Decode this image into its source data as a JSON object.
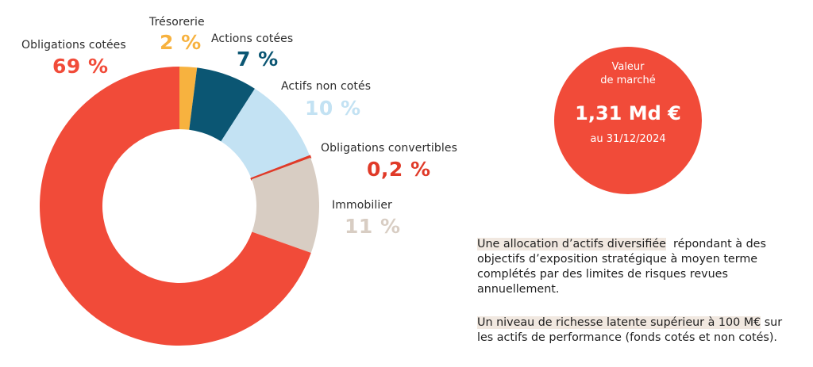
{
  "colors": {
    "obligations_cotees": "#f14b39",
    "tresorerie": "#f7b23f",
    "actions_cotees": "#0b5673",
    "actifs_non_cotes": "#c3e2f3",
    "obligations_convertibles": "#e03a28",
    "immobilier": "#d8cdc3",
    "badge": "#f14b39",
    "highlight": "#f1e8e0"
  },
  "chart_data": {
    "type": "pie",
    "donut": true,
    "start_at": "top",
    "direction": "clockwise",
    "slices": [
      {
        "name": "Trésorerie",
        "value": 2,
        "label": "2 %",
        "color": "#f7b23f"
      },
      {
        "name": "Actions cotées",
        "value": 7,
        "label": "7 %",
        "color": "#0b5673"
      },
      {
        "name": "Actifs non cotés",
        "value": 10,
        "label": "10 %",
        "color": "#c3e2f3"
      },
      {
        "name": "Obligations convertibles",
        "value": 0.2,
        "label": "0,2 %",
        "color": "#e03a28"
      },
      {
        "name": "Immobilier",
        "value": 11,
        "label": "11 %",
        "color": "#d8cdc3"
      },
      {
        "name": "Obligations cotées",
        "value": 69,
        "label": "69 %",
        "color": "#f14b39"
      }
    ]
  },
  "badge": {
    "line1": "Valeur",
    "line2": "de marché",
    "value": "1,31 Md €",
    "date": "au 31/12/2024"
  },
  "text": {
    "p1_highlight": "Une allocation d’actifs diversifiée",
    "p1_rest": "  répondant à des objectifs d’exposition stratégique à moyen terme complétés par des limites de risques revues annuellement.",
    "p2_highlight": "Un niveau de richesse latente supérieur à 100 M€",
    "p2_rest": " sur les actifs de performance (fonds cotés et non cotés)."
  }
}
